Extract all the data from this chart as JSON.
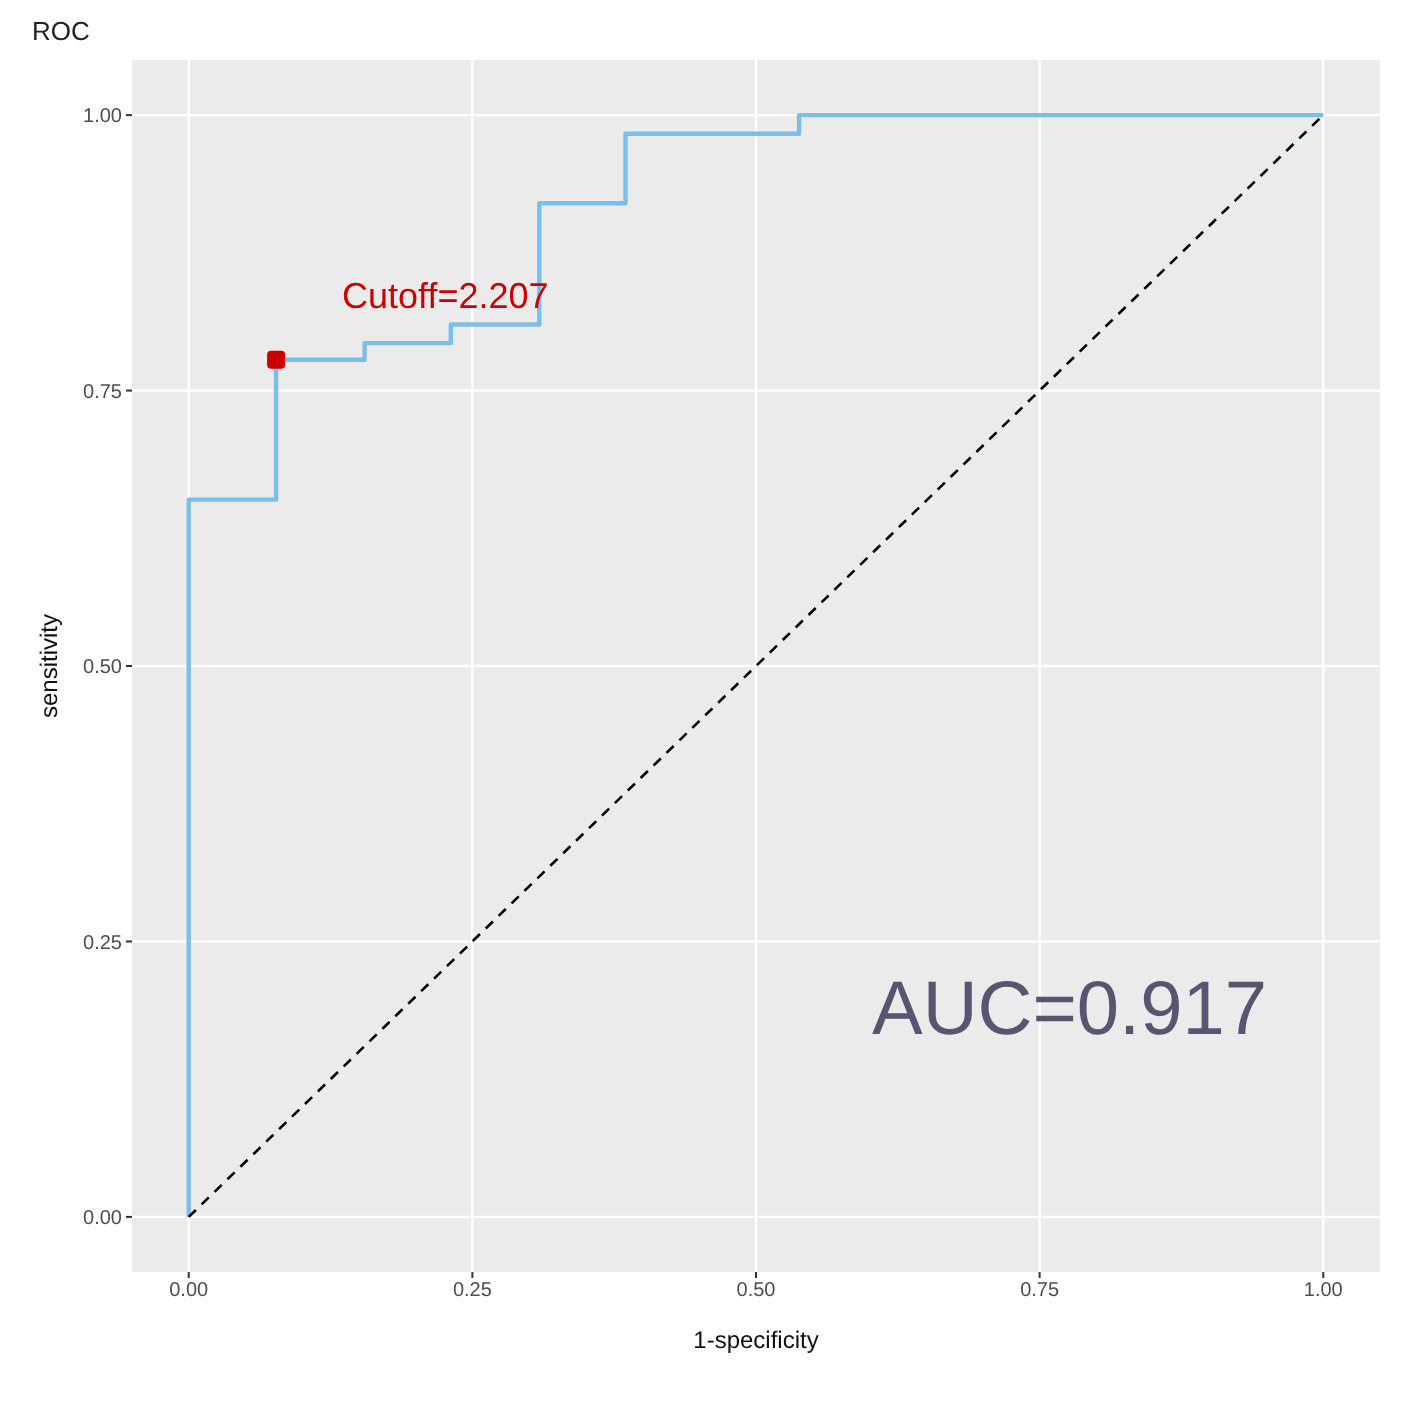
{
  "chart_data": {
    "type": "step",
    "title": "ROC",
    "xlabel": "1-specificity",
    "ylabel": "sensitivity",
    "xlim": [
      -0.05,
      1.05
    ],
    "ylim": [
      -0.05,
      1.05
    ],
    "xticks": [
      {
        "value": 0,
        "label": "0.00"
      },
      {
        "value": 0.25,
        "label": "0.25"
      },
      {
        "value": 0.5,
        "label": "0.50"
      },
      {
        "value": 0.75,
        "label": "0.75"
      },
      {
        "value": 1,
        "label": "1.00"
      }
    ],
    "yticks": [
      {
        "value": 0,
        "label": "0.00"
      },
      {
        "value": 0.25,
        "label": "0.25"
      },
      {
        "value": 0.5,
        "label": "0.50"
      },
      {
        "value": 0.75,
        "label": "0.75"
      },
      {
        "value": 1,
        "label": "1.00"
      }
    ],
    "grid": true,
    "legend": false,
    "series": [
      {
        "color": "#7bbfe8",
        "x": [
          0,
          0,
          0.077,
          0.155,
          0.231,
          0.309,
          0.385,
          0.538,
          1
        ],
        "values": [
          0,
          0.651,
          0.778,
          0.793,
          0.81,
          0.92,
          0.983,
          1,
          1
        ]
      },
      {
        "type": "line",
        "color": "#000000",
        "line_style": "dashed",
        "x": [
          0,
          1
        ],
        "values": [
          0,
          1
        ]
      },
      {
        "type": "scatter",
        "color": "#cc0000",
        "marker": "square",
        "x": [
          0.077
        ],
        "values": [
          0.778
        ]
      }
    ],
    "annotations": [
      "Cutoff=2.207",
      "AUC=0.917"
    ]
  }
}
